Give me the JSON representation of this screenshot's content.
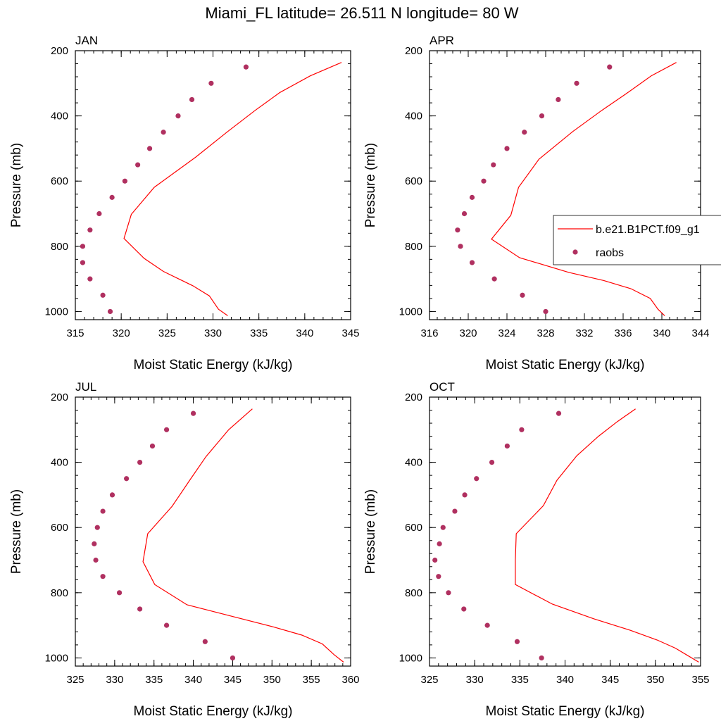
{
  "chart_data": {
    "title": "Miami_FL  latitude= 26.511 N longitude= 80 W",
    "type": "line",
    "xlabel": "Moist Static Energy (kJ/kg)",
    "ylabel": "Pressure (mb)",
    "ylim": [
      200,
      1025
    ],
    "y_ticks": [
      200,
      400,
      600,
      800,
      1000
    ],
    "y_reversed": true,
    "legend": {
      "position": "right",
      "entries": [
        {
          "name": "b.e21.B1PCT.f09_g1",
          "style": "line",
          "color": "#ff0000"
        },
        {
          "name": "raobs",
          "style": "marker",
          "color": "#b03060"
        }
      ]
    },
    "colors": {
      "model": "#ff0000",
      "obs": "#b03060"
    },
    "panels": [
      {
        "label": "JAN",
        "xlim": [
          315,
          345
        ],
        "x_ticks": [
          315,
          320,
          325,
          330,
          335,
          340,
          345
        ],
        "model": {
          "name": "b.e21.B1PCT.f09_g1",
          "pressure": [
            236,
            277,
            328,
            383,
            448,
            527,
            619,
            702,
            776,
            837,
            877,
            921,
            952,
            993,
            1013
          ],
          "mse": [
            344.0,
            340.6,
            337.3,
            334.6,
            331.6,
            328.1,
            323.6,
            321.1,
            320.3,
            322.5,
            324.6,
            327.8,
            329.6,
            330.6,
            331.6
          ]
        },
        "obs": {
          "name": "raobs",
          "pressure": [
            250,
            300,
            350,
            400,
            450,
            500,
            550,
            600,
            650,
            700,
            750,
            800,
            850,
            900,
            950,
            1000
          ],
          "mse": [
            333.6,
            329.8,
            327.7,
            326.2,
            324.6,
            323.1,
            321.8,
            320.4,
            319.0,
            317.6,
            316.6,
            315.8,
            315.8,
            316.6,
            318.0,
            318.8
          ]
        }
      },
      {
        "label": "APR",
        "xlim": [
          316,
          344
        ],
        "x_ticks": [
          316,
          320,
          324,
          328,
          332,
          336,
          340,
          344
        ],
        "model": {
          "name": "b.e21.B1PCT.f09_g1",
          "pressure": [
            236,
            277,
            328,
            383,
            448,
            533,
            619,
            705,
            778,
            835,
            880,
            905,
            930,
            960,
            993,
            1013
          ],
          "mse": [
            341.5,
            338.9,
            336.5,
            333.8,
            330.8,
            327.3,
            325.2,
            324.4,
            322.4,
            325.3,
            330.4,
            334.0,
            336.8,
            338.8,
            339.6,
            340.3
          ]
        },
        "obs": {
          "name": "raobs",
          "pressure": [
            250,
            300,
            350,
            400,
            450,
            500,
            550,
            600,
            650,
            700,
            750,
            800,
            850,
            900,
            950,
            1000
          ],
          "mse": [
            334.6,
            331.2,
            329.3,
            327.6,
            325.8,
            324.0,
            322.6,
            321.6,
            320.4,
            319.6,
            318.9,
            319.2,
            320.4,
            322.7,
            325.6,
            328.0
          ]
        }
      },
      {
        "label": "JUL",
        "xlim": [
          325,
          360
        ],
        "x_ticks": [
          325,
          330,
          335,
          340,
          345,
          350,
          355,
          360
        ],
        "model": {
          "name": "b.e21.B1PCT.f09_g1",
          "pressure": [
            236,
            300,
            383,
            453,
            535,
            619,
            705,
            775,
            837,
            873,
            905,
            930,
            957,
            990,
            1013
          ],
          "mse": [
            347.5,
            344.5,
            341.6,
            339.6,
            337.3,
            334.2,
            333.6,
            335.1,
            339.2,
            345.0,
            350.2,
            353.8,
            356.4,
            357.9,
            359.1
          ]
        },
        "obs": {
          "name": "raobs",
          "pressure": [
            250,
            300,
            350,
            400,
            450,
            500,
            550,
            600,
            650,
            700,
            750,
            800,
            850,
            900,
            950,
            1000
          ],
          "mse": [
            340.0,
            336.6,
            334.8,
            333.2,
            331.5,
            329.7,
            328.5,
            327.8,
            327.4,
            327.6,
            328.5,
            330.6,
            333.2,
            336.6,
            341.5,
            345.0
          ]
        }
      },
      {
        "label": "OCT",
        "xlim": [
          325,
          355
        ],
        "x_ticks": [
          325,
          330,
          335,
          340,
          345,
          350,
          355
        ],
        "model": {
          "name": "b.e21.B1PCT.f09_g1",
          "pressure": [
            236,
            275,
            320,
            380,
            455,
            533,
            619,
            700,
            775,
            835,
            880,
            915,
            945,
            970,
            993,
            1013
          ],
          "mse": [
            347.8,
            345.8,
            343.7,
            341.3,
            339.1,
            337.6,
            334.6,
            334.5,
            334.5,
            338.6,
            343.2,
            347.2,
            350.2,
            352.2,
            353.6,
            354.8
          ]
        },
        "obs": {
          "name": "raobs",
          "pressure": [
            250,
            300,
            350,
            400,
            450,
            500,
            550,
            600,
            650,
            700,
            750,
            800,
            850,
            900,
            950,
            1000
          ],
          "mse": [
            339.3,
            335.2,
            333.6,
            331.9,
            330.2,
            328.9,
            327.8,
            326.5,
            326.1,
            325.6,
            326.0,
            327.1,
            328.8,
            331.4,
            334.7,
            337.4
          ]
        }
      }
    ]
  }
}
